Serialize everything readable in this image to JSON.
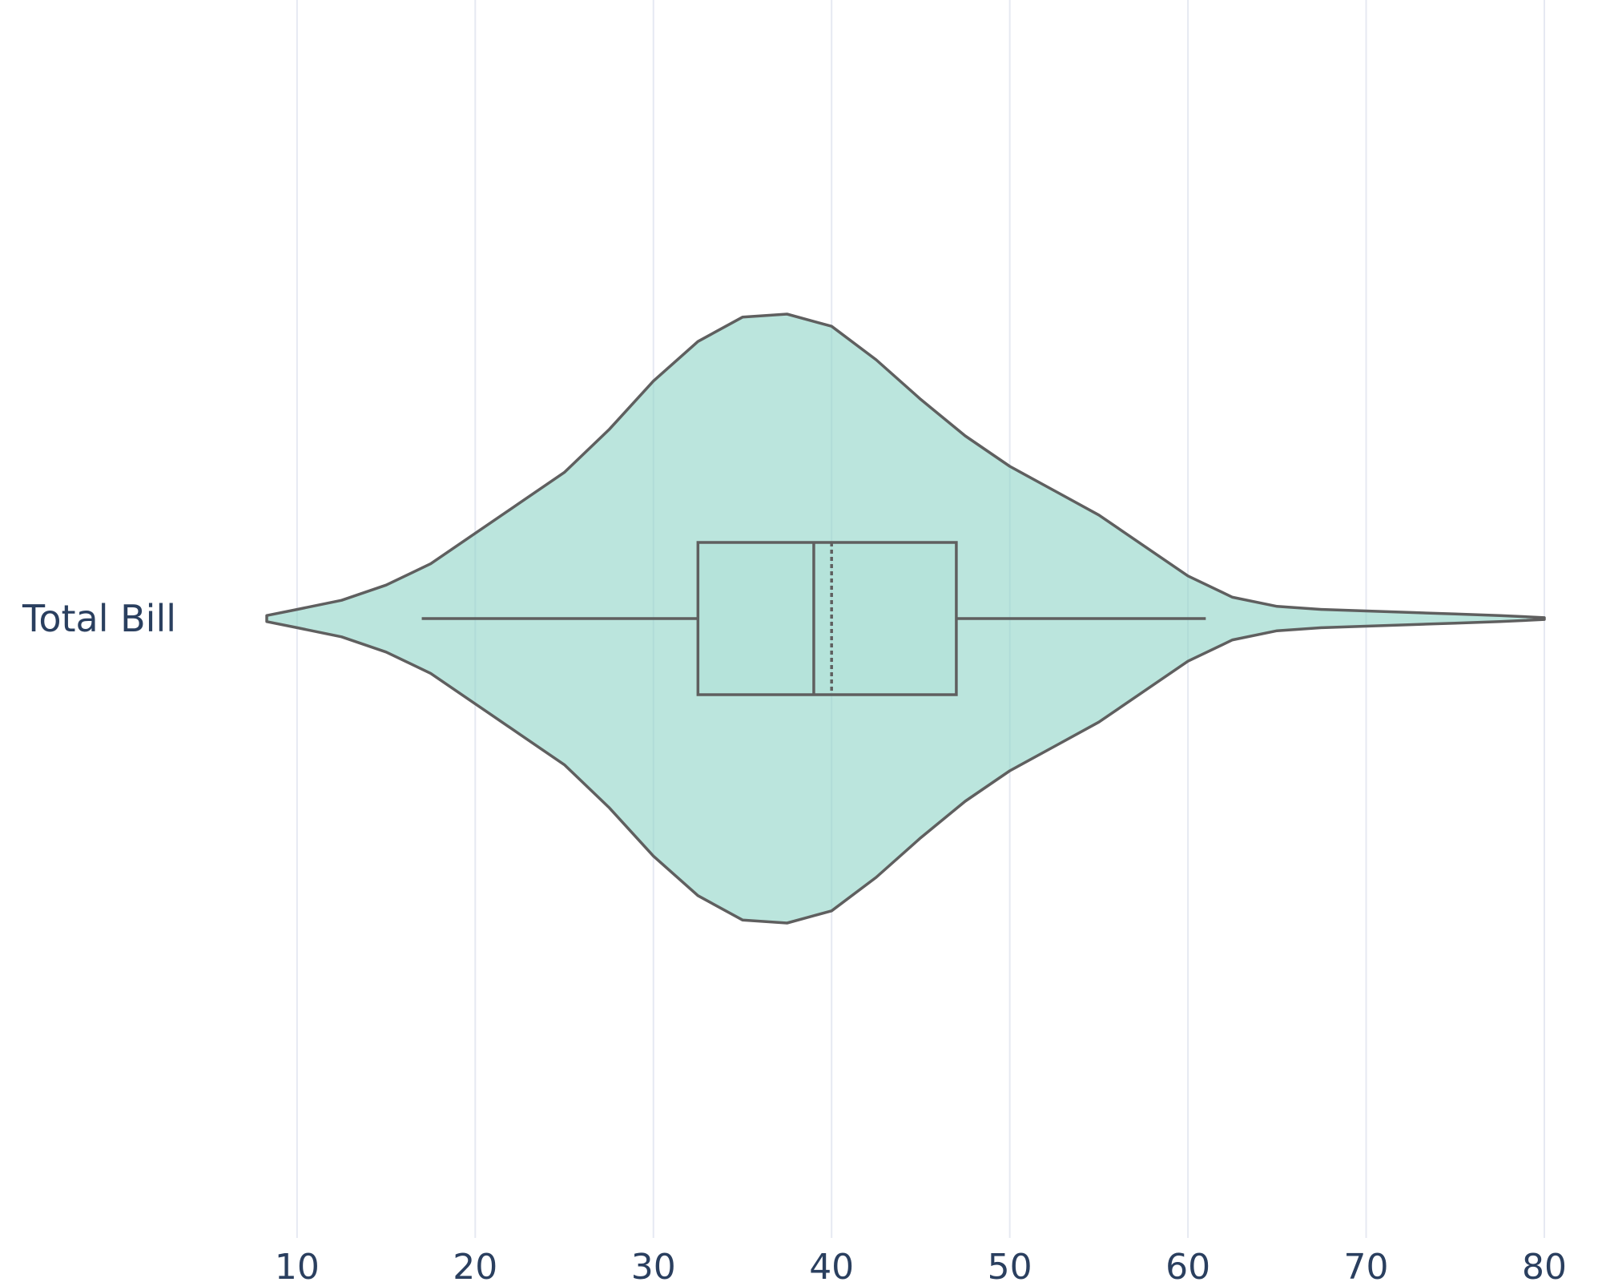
{
  "colors": {
    "violin_fill": "#8dd3c7",
    "outline": "#5f5f5f",
    "text": "#2a3f5f",
    "grid": "#e6e9f2",
    "background": "#ffffff"
  },
  "chart_data": {
    "type": "violin",
    "title": "",
    "xlabel": "",
    "ylabel": "",
    "orientation": "horizontal",
    "categories": [
      "Total Bill"
    ],
    "x_ticks": [
      10,
      20,
      30,
      40,
      50,
      60,
      70,
      80
    ],
    "xlim": [
      7.4,
      80
    ],
    "grid": {
      "vertical": true,
      "horizontal": false
    },
    "series": [
      {
        "category": "Total Bill",
        "color": "#8dd3c7",
        "density_x": [
          8.3,
          10,
          12.5,
          15,
          17.5,
          20,
          22.5,
          25,
          27.5,
          30,
          32.5,
          35,
          37.5,
          40,
          42.5,
          45,
          47.5,
          50,
          52.5,
          55,
          57.5,
          60,
          62.5,
          65,
          67.5,
          70,
          72.5,
          75,
          77.5,
          80
        ],
        "density_relative": [
          0.01,
          0.03,
          0.06,
          0.11,
          0.18,
          0.28,
          0.38,
          0.48,
          0.62,
          0.78,
          0.91,
          0.99,
          1.0,
          0.96,
          0.85,
          0.72,
          0.6,
          0.5,
          0.42,
          0.34,
          0.24,
          0.14,
          0.07,
          0.04,
          0.03,
          0.025,
          0.02,
          0.015,
          0.01,
          0.003
        ],
        "box": {
          "q1": 32.5,
          "median": 39,
          "mean": 40,
          "q3": 47,
          "whisker_low": 17,
          "whisker_high": 61
        }
      }
    ]
  }
}
